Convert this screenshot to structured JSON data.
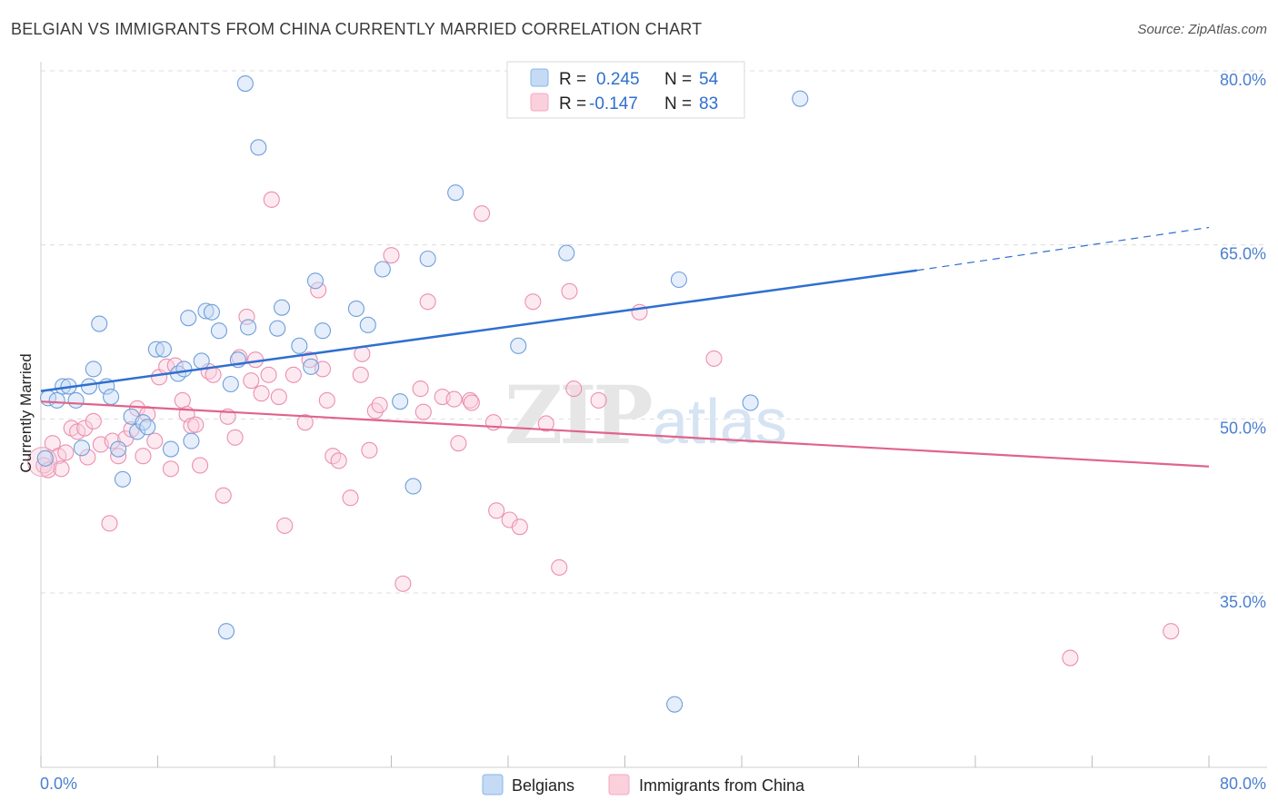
{
  "title": "BELGIAN VS IMMIGRANTS FROM CHINA CURRENTLY MARRIED CORRELATION CHART",
  "source": "Source: ZipAtlas.com",
  "watermark": "ZIPatlas",
  "legend_top": {
    "rows": [
      {
        "r_label": "R =",
        "r_value": "0.245",
        "n_label": "N =",
        "n_value": "54",
        "color": "#8ab4e8"
      },
      {
        "r_label": "R =",
        "r_value": "-0.147",
        "n_label": "N =",
        "n_value": "83",
        "color": "#f4a8c0"
      }
    ]
  },
  "legend_bottom": [
    {
      "label": "Belgians",
      "color": "#8ab4e8"
    },
    {
      "label": "Immigrants from China",
      "color": "#f4a8c0"
    }
  ],
  "chart_data": {
    "type": "scatter",
    "title": "BELGIAN VS IMMIGRANTS FROM CHINA CURRENTLY MARRIED CORRELATION CHART",
    "xlabel": "",
    "ylabel": "Currently Married",
    "xlim": [
      0,
      80
    ],
    "ylim": [
      20,
      82
    ],
    "x_tick_labels": [
      "0.0%",
      "80.0%"
    ],
    "y_ticks": [
      35,
      50,
      65,
      80
    ],
    "y_tick_labels": [
      "35.0%",
      "50.0%",
      "65.0%",
      "80.0%"
    ],
    "grid": true,
    "legend_position": "top-center",
    "series": [
      {
        "name": "Belgians",
        "color": "#8ab4e8",
        "line_color": "#2f6fd0",
        "trend": {
          "x0": 0,
          "y0": 52.4,
          "x1": 60,
          "y1": 62.8,
          "x_ext": 80,
          "y_ext": 66.5
        },
        "points": [
          [
            0.3,
            46.6
          ],
          [
            0.5,
            51.8
          ],
          [
            1.1,
            51.6
          ],
          [
            1.5,
            52.8
          ],
          [
            1.9,
            52.8
          ],
          [
            2.4,
            51.6
          ],
          [
            2.8,
            47.5
          ],
          [
            3.3,
            52.8
          ],
          [
            3.6,
            54.3
          ],
          [
            4.0,
            58.2
          ],
          [
            4.5,
            52.8
          ],
          [
            4.8,
            51.9
          ],
          [
            5.3,
            47.4
          ],
          [
            5.6,
            44.8
          ],
          [
            6.2,
            50.2
          ],
          [
            6.6,
            48.9
          ],
          [
            7.0,
            49.7
          ],
          [
            7.3,
            49.3
          ],
          [
            7.9,
            56.0
          ],
          [
            8.4,
            56.0
          ],
          [
            8.9,
            47.4
          ],
          [
            9.4,
            53.9
          ],
          [
            9.8,
            54.3
          ],
          [
            10.1,
            58.7
          ],
          [
            10.3,
            48.1
          ],
          [
            11.0,
            55.0
          ],
          [
            11.3,
            59.3
          ],
          [
            11.7,
            59.2
          ],
          [
            12.2,
            57.6
          ],
          [
            13.0,
            53.0
          ],
          [
            12.7,
            31.7
          ],
          [
            13.5,
            55.1
          ],
          [
            14.0,
            78.9
          ],
          [
            14.2,
            57.9
          ],
          [
            14.9,
            73.4
          ],
          [
            16.2,
            57.8
          ],
          [
            16.5,
            59.6
          ],
          [
            17.7,
            56.3
          ],
          [
            18.5,
            54.5
          ],
          [
            18.8,
            61.9
          ],
          [
            19.3,
            57.6
          ],
          [
            21.6,
            59.5
          ],
          [
            22.4,
            58.1
          ],
          [
            23.4,
            62.9
          ],
          [
            24.6,
            51.5
          ],
          [
            25.5,
            44.2
          ],
          [
            26.5,
            63.8
          ],
          [
            28.4,
            69.5
          ],
          [
            32.7,
            56.3
          ],
          [
            36.0,
            64.3
          ],
          [
            43.4,
            25.4
          ],
          [
            43.7,
            62.0
          ],
          [
            48.6,
            51.4
          ],
          [
            52.0,
            77.6
          ]
        ]
      },
      {
        "name": "Immigrants from China",
        "color": "#f4a8c0",
        "line_color": "#e0648a",
        "trend": {
          "x0": 0,
          "y0": 51.5,
          "x1": 80,
          "y1": 45.9
        },
        "points": [
          [
            0.2,
            46.0
          ],
          [
            0.5,
            45.6
          ],
          [
            0.8,
            47.9
          ],
          [
            1.2,
            46.8
          ],
          [
            1.4,
            45.7
          ],
          [
            1.7,
            47.1
          ],
          [
            2.1,
            49.2
          ],
          [
            2.5,
            48.9
          ],
          [
            3.0,
            49.2
          ],
          [
            3.2,
            46.7
          ],
          [
            3.6,
            49.8
          ],
          [
            4.1,
            47.8
          ],
          [
            4.7,
            41.0
          ],
          [
            4.9,
            48.1
          ],
          [
            5.3,
            46.8
          ],
          [
            5.8,
            48.3
          ],
          [
            6.2,
            49.1
          ],
          [
            6.6,
            50.9
          ],
          [
            7.0,
            46.8
          ],
          [
            7.3,
            50.4
          ],
          [
            7.8,
            48.1
          ],
          [
            8.1,
            53.6
          ],
          [
            8.6,
            54.5
          ],
          [
            8.9,
            45.7
          ],
          [
            9.2,
            54.6
          ],
          [
            9.7,
            51.6
          ],
          [
            10.0,
            50.4
          ],
          [
            10.3,
            49.4
          ],
          [
            10.6,
            49.5
          ],
          [
            10.9,
            46.0
          ],
          [
            11.5,
            54.1
          ],
          [
            11.8,
            53.8
          ],
          [
            12.5,
            43.4
          ],
          [
            12.8,
            50.2
          ],
          [
            13.3,
            48.4
          ],
          [
            13.6,
            55.3
          ],
          [
            14.1,
            58.8
          ],
          [
            14.4,
            53.3
          ],
          [
            14.7,
            55.1
          ],
          [
            15.1,
            52.2
          ],
          [
            15.6,
            53.8
          ],
          [
            15.8,
            68.9
          ],
          [
            16.3,
            51.9
          ],
          [
            16.7,
            40.8
          ],
          [
            17.3,
            53.8
          ],
          [
            18.1,
            49.7
          ],
          [
            18.4,
            55.1
          ],
          [
            19.0,
            61.1
          ],
          [
            19.3,
            54.3
          ],
          [
            19.6,
            51.6
          ],
          [
            20.0,
            46.8
          ],
          [
            20.4,
            46.4
          ],
          [
            21.2,
            43.2
          ],
          [
            21.9,
            53.8
          ],
          [
            22.0,
            55.6
          ],
          [
            22.5,
            47.3
          ],
          [
            22.9,
            50.7
          ],
          [
            23.2,
            51.2
          ],
          [
            24.0,
            64.1
          ],
          [
            24.8,
            35.8
          ],
          [
            26.0,
            52.6
          ],
          [
            26.2,
            50.6
          ],
          [
            26.5,
            60.1
          ],
          [
            27.5,
            51.9
          ],
          [
            28.3,
            51.7
          ],
          [
            28.6,
            47.9
          ],
          [
            29.4,
            51.6
          ],
          [
            29.5,
            51.4
          ],
          [
            30.2,
            67.7
          ],
          [
            31.0,
            49.7
          ],
          [
            31.2,
            42.1
          ],
          [
            32.1,
            41.3
          ],
          [
            32.8,
            40.7
          ],
          [
            33.7,
            60.1
          ],
          [
            34.6,
            49.6
          ],
          [
            35.5,
            37.2
          ],
          [
            36.2,
            61.0
          ],
          [
            36.5,
            52.6
          ],
          [
            38.2,
            51.6
          ],
          [
            41.0,
            59.2
          ],
          [
            46.1,
            55.2
          ],
          [
            70.5,
            29.4
          ],
          [
            77.4,
            31.7
          ]
        ]
      }
    ]
  }
}
